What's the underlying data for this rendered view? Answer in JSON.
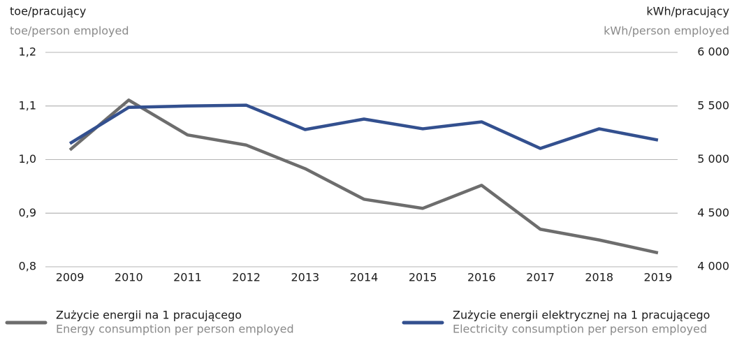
{
  "chart_data": {
    "type": "line",
    "ylabel": "toe/pracujący",
    "ylabel_en": "toe/person employed",
    "y2label": "kWh/pracujący",
    "y2label_en": "kWh/person employed",
    "categories": [
      "2009",
      "2010",
      "2011",
      "2012",
      "2013",
      "2014",
      "2015",
      "2016",
      "2017",
      "2018",
      "2019"
    ],
    "series": [
      {
        "name": "Zużycie energii na 1 pracującego",
        "name_en": "Energy consumption per person employed",
        "color": "#6d6d6d",
        "values": [
          1.018,
          1.111,
          1.046,
          1.027,
          0.983,
          0.926,
          0.909,
          0.952,
          0.87,
          0.85,
          0.826
        ]
      },
      {
        "name": "Zużycie energii elektrycznej na 1 pracującego",
        "name_en": "Electricity consumption per person employed",
        "color": "#33508f",
        "axis": "y2",
        "values": [
          5150,
          5487,
          5500,
          5507,
          5280,
          5378,
          5287,
          5352,
          5104,
          5287,
          5182
        ]
      }
    ],
    "ylim": [
      0.8,
      1.2
    ],
    "yticks": [
      {
        "value": 0.8,
        "label": "0,8"
      },
      {
        "value": 0.9,
        "label": "0,9"
      },
      {
        "value": 1.0,
        "label": "1,0"
      },
      {
        "value": 1.1,
        "label": "1,1"
      },
      {
        "value": 1.2,
        "label": "1,2"
      }
    ],
    "y2lim": [
      4000,
      6000
    ],
    "y2ticks": [
      {
        "value": 4000,
        "label": "4 000"
      },
      {
        "value": 4500,
        "label": "4 500"
      },
      {
        "value": 5000,
        "label": "5 000"
      },
      {
        "value": 5500,
        "label": "5 500"
      },
      {
        "value": 6000,
        "label": "6 000"
      }
    ],
    "grid": true
  }
}
